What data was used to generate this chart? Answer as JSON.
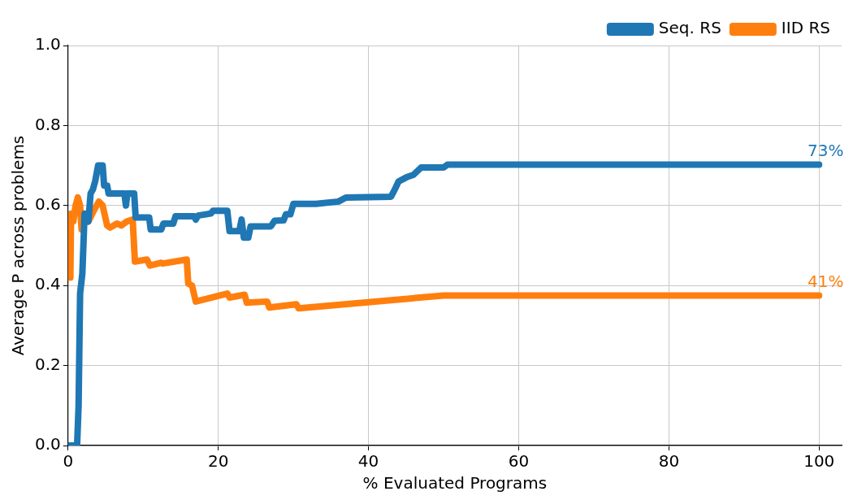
{
  "chart_data": {
    "type": "line",
    "xlabel": "% Evaluated Programs",
    "ylabel": "Average P across problems",
    "xlim": [
      0,
      103
    ],
    "xticks": [
      0,
      20,
      40,
      60,
      80,
      100
    ],
    "ylim": [
      0,
      1
    ],
    "yticks": [
      {
        "value": 0,
        "label": "0.0"
      },
      {
        "value": 0.2,
        "label": "0.2"
      },
      {
        "value": 0.4,
        "label": "0.4"
      },
      {
        "value": 0.6,
        "label": "0.6"
      },
      {
        "value": 0.8,
        "label": "0.8"
      },
      {
        "value": 1,
        "label": "1.0"
      }
    ],
    "grid": true,
    "legend": "top right",
    "marker": "none",
    "line_style": "solid",
    "series": [
      {
        "name": "Seq. RS",
        "color": "#1f77b4",
        "x": [
          0,
          1.2,
          1.4,
          1.6,
          1.9,
          2.2,
          2.7,
          3,
          3.3,
          3.6,
          4,
          4.6,
          4.8,
          5.2,
          5.4,
          7.5,
          7.7,
          7.9,
          8.8,
          9,
          10.8,
          11,
          12.4,
          12.7,
          14,
          14.3,
          16.8,
          17,
          17.3,
          19,
          19.3,
          21.2,
          21.5,
          22.8,
          23.1,
          23.4,
          24,
          24.3,
          27,
          27.5,
          28.7,
          29,
          29.6,
          30,
          33,
          36,
          37,
          43,
          43.5,
          44,
          45,
          46,
          47,
          50,
          50.5,
          100
        ],
        "values": [
          0,
          0,
          0.1,
          0.38,
          0.43,
          0.58,
          0.56,
          0.63,
          0.64,
          0.66,
          0.7,
          0.7,
          0.65,
          0.65,
          0.63,
          0.63,
          0.6,
          0.63,
          0.63,
          0.57,
          0.57,
          0.54,
          0.54,
          0.555,
          0.555,
          0.573,
          0.573,
          0.565,
          0.575,
          0.58,
          0.587,
          0.587,
          0.536,
          0.536,
          0.565,
          0.52,
          0.52,
          0.548,
          0.548,
          0.562,
          0.563,
          0.578,
          0.578,
          0.604,
          0.604,
          0.61,
          0.62,
          0.622,
          0.64,
          0.66,
          0.67,
          0.677,
          0.695,
          0.695,
          0.702,
          0.702
        ]
      },
      {
        "name": "IID RS",
        "color": "#ff7f0e",
        "x": [
          0,
          0.3,
          0.4,
          0.7,
          1,
          1.3,
          1.6,
          1.8,
          2.2,
          2.7,
          3.5,
          4.1,
          4.6,
          5.2,
          5.6,
          6.5,
          7.1,
          7.8,
          8.6,
          8.9,
          10.5,
          10.9,
          12.4,
          12.6,
          15.8,
          16,
          16.5,
          17,
          21.2,
          21.5,
          23.5,
          23.8,
          26.5,
          26.8,
          30.4,
          30.7,
          50,
          100
        ],
        "values": [
          0.42,
          0.42,
          0.58,
          0.56,
          0.6,
          0.62,
          0.6,
          0.54,
          0.56,
          0.56,
          0.59,
          0.61,
          0.6,
          0.55,
          0.545,
          0.555,
          0.55,
          0.56,
          0.565,
          0.46,
          0.465,
          0.45,
          0.457,
          0.455,
          0.465,
          0.405,
          0.4,
          0.36,
          0.38,
          0.37,
          0.377,
          0.357,
          0.36,
          0.345,
          0.353,
          0.343,
          0.375,
          0.375
        ]
      }
    ],
    "annotations": [
      {
        "text": "73%",
        "x": 100,
        "y": 0.702
      },
      {
        "text": "41%",
        "x": 100,
        "y": 0.375
      }
    ]
  }
}
